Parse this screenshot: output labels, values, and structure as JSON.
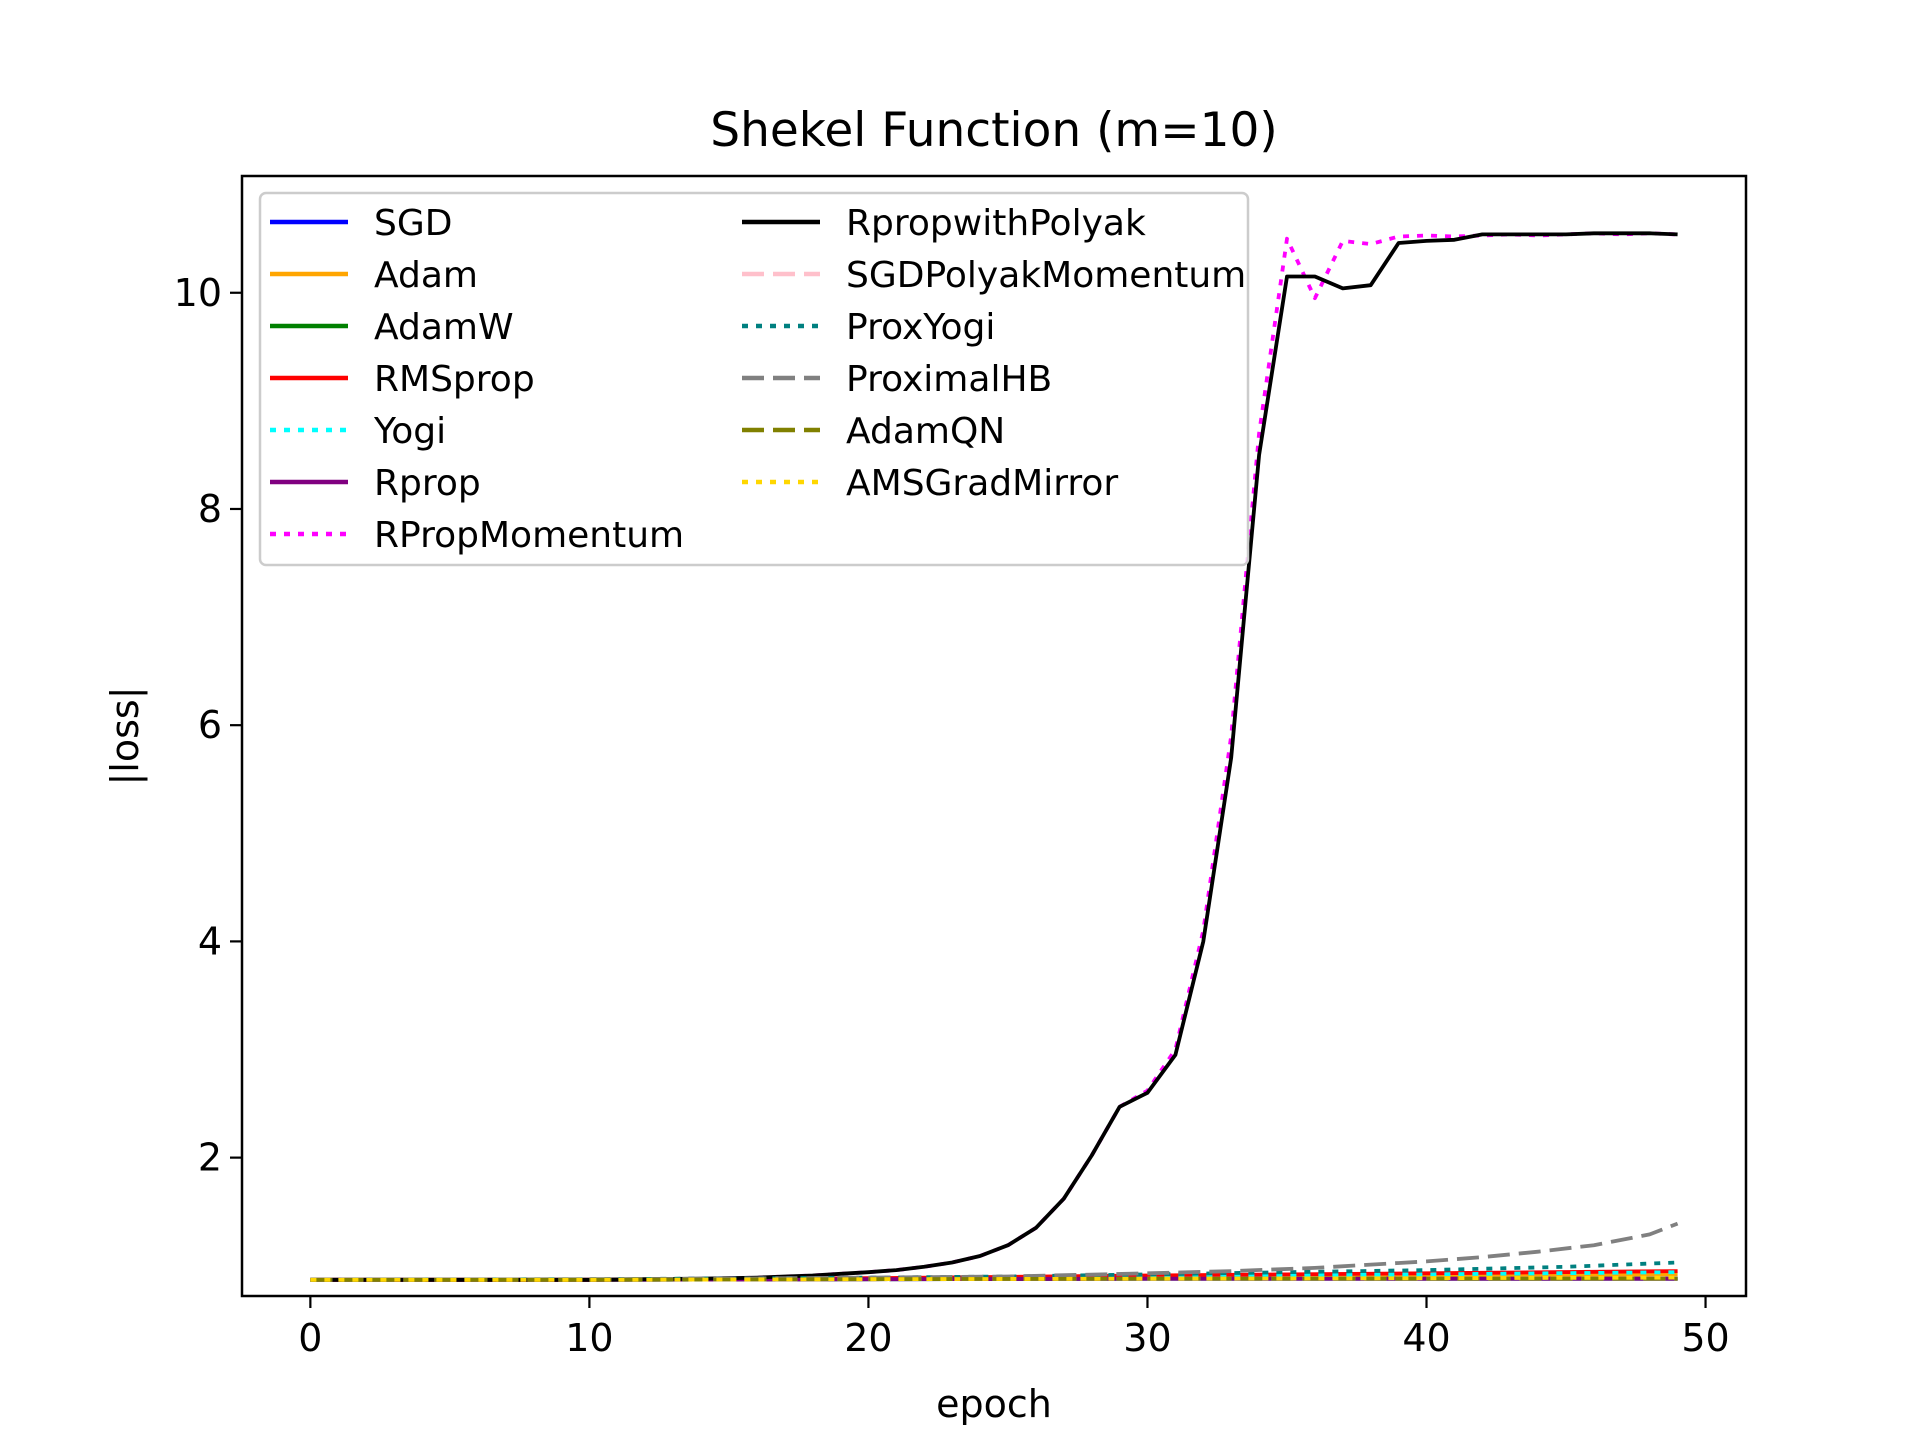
{
  "chart_data": {
    "type": "line",
    "title": "Shekel Function (m=10)",
    "xlabel": "epoch",
    "ylabel": "|loss|",
    "xlim": [
      -2.45,
      51.45
    ],
    "ylim": [
      0.72,
      11.08
    ],
    "xticks": [
      0,
      10,
      20,
      30,
      40,
      50
    ],
    "yticks": [
      2,
      4,
      6,
      8,
      10
    ],
    "legend_position": "top-left",
    "grid": false,
    "series": [
      {
        "name": "SGD",
        "color": "#0000ff",
        "dash": "solid",
        "points": [
          [
            0,
            0.87
          ],
          [
            10,
            0.87
          ],
          [
            20,
            0.875
          ],
          [
            30,
            0.88
          ],
          [
            40,
            0.88
          ],
          [
            49,
            0.88
          ]
        ]
      },
      {
        "name": "Adam",
        "color": "#ffa500",
        "dash": "solid",
        "points": [
          [
            0,
            0.87
          ],
          [
            10,
            0.87
          ],
          [
            20,
            0.88
          ],
          [
            30,
            0.895
          ],
          [
            40,
            0.91
          ],
          [
            49,
            0.92
          ]
        ]
      },
      {
        "name": "AdamW",
        "color": "#008000",
        "dash": "solid",
        "points": [
          [
            0,
            0.87
          ],
          [
            10,
            0.87
          ],
          [
            20,
            0.875
          ],
          [
            30,
            0.88
          ],
          [
            40,
            0.88
          ],
          [
            49,
            0.88
          ]
        ]
      },
      {
        "name": "RMSprop",
        "color": "#ff0000",
        "dash": "solid",
        "points": [
          [
            0,
            0.87
          ],
          [
            10,
            0.87
          ],
          [
            20,
            0.885
          ],
          [
            30,
            0.91
          ],
          [
            40,
            0.93
          ],
          [
            49,
            0.95
          ]
        ]
      },
      {
        "name": "Yogi",
        "color": "#00ffff",
        "dash": "dotted",
        "points": [
          [
            0,
            0.87
          ],
          [
            10,
            0.87
          ],
          [
            20,
            0.88
          ],
          [
            30,
            0.9
          ],
          [
            40,
            0.92
          ],
          [
            49,
            0.94
          ]
        ]
      },
      {
        "name": "Rprop",
        "color": "#800080",
        "dash": "solid",
        "points": [
          [
            0,
            0.87
          ],
          [
            10,
            0.87
          ],
          [
            20,
            0.875
          ],
          [
            30,
            0.88
          ],
          [
            40,
            0.88
          ],
          [
            49,
            0.88
          ]
        ]
      },
      {
        "name": "RPropMomentum",
        "color": "#ff00ff",
        "dash": "dotted",
        "points": [
          [
            0,
            0.87
          ],
          [
            5,
            0.87
          ],
          [
            10,
            0.87
          ],
          [
            12,
            0.875
          ],
          [
            14,
            0.88
          ],
          [
            15,
            0.885
          ],
          [
            16,
            0.89
          ],
          [
            17,
            0.9
          ],
          [
            18,
            0.91
          ],
          [
            19,
            0.925
          ],
          [
            20,
            0.94
          ],
          [
            21,
            0.96
          ],
          [
            22,
            0.99
          ],
          [
            23,
            1.03
          ],
          [
            24,
            1.09
          ],
          [
            25,
            1.19
          ],
          [
            26,
            1.35
          ],
          [
            27,
            1.62
          ],
          [
            28,
            2.02
          ],
          [
            29,
            2.47
          ],
          [
            30,
            2.62
          ],
          [
            31,
            3.0
          ],
          [
            32,
            4.1
          ],
          [
            33,
            5.9
          ],
          [
            33.5,
            7.3
          ],
          [
            34,
            8.7
          ],
          [
            35,
            10.5
          ],
          [
            36,
            9.95
          ],
          [
            37,
            10.48
          ],
          [
            38,
            10.45
          ],
          [
            39,
            10.52
          ],
          [
            40,
            10.53
          ],
          [
            41,
            10.52
          ],
          [
            42,
            10.53
          ],
          [
            43,
            10.54
          ],
          [
            44,
            10.53
          ],
          [
            45,
            10.54
          ],
          [
            46,
            10.55
          ],
          [
            47,
            10.54
          ],
          [
            48,
            10.55
          ],
          [
            49,
            10.54
          ]
        ]
      },
      {
        "name": "RpropwithPolyak",
        "color": "#000000",
        "dash": "solid",
        "points": [
          [
            0,
            0.87
          ],
          [
            5,
            0.87
          ],
          [
            10,
            0.87
          ],
          [
            12,
            0.875
          ],
          [
            14,
            0.88
          ],
          [
            15,
            0.885
          ],
          [
            16,
            0.89
          ],
          [
            17,
            0.9
          ],
          [
            18,
            0.91
          ],
          [
            19,
            0.925
          ],
          [
            20,
            0.94
          ],
          [
            21,
            0.96
          ],
          [
            22,
            0.99
          ],
          [
            23,
            1.03
          ],
          [
            24,
            1.09
          ],
          [
            25,
            1.19
          ],
          [
            26,
            1.35
          ],
          [
            27,
            1.62
          ],
          [
            28,
            2.02
          ],
          [
            29,
            2.47
          ],
          [
            30,
            2.6
          ],
          [
            31,
            2.95
          ],
          [
            32,
            4.0
          ],
          [
            33,
            5.7
          ],
          [
            33.5,
            7.1
          ],
          [
            34,
            8.5
          ],
          [
            35,
            10.15
          ],
          [
            36,
            10.15
          ],
          [
            37,
            10.04
          ],
          [
            38,
            10.07
          ],
          [
            39,
            10.46
          ],
          [
            40,
            10.48
          ],
          [
            41,
            10.49
          ],
          [
            42,
            10.54
          ],
          [
            43,
            10.54
          ],
          [
            44,
            10.54
          ],
          [
            45,
            10.54
          ],
          [
            46,
            10.55
          ],
          [
            47,
            10.55
          ],
          [
            48,
            10.55
          ],
          [
            49,
            10.54
          ]
        ]
      },
      {
        "name": "SGDPolyakMomentum",
        "color": "#ffc0cb",
        "dash": "dashed",
        "points": [
          [
            0,
            0.87
          ],
          [
            10,
            0.87
          ],
          [
            20,
            0.875
          ],
          [
            30,
            0.88
          ],
          [
            40,
            0.88
          ],
          [
            49,
            0.88
          ]
        ]
      },
      {
        "name": "ProxYogi",
        "color": "#008080",
        "dash": "dotted",
        "points": [
          [
            0,
            0.87
          ],
          [
            10,
            0.875
          ],
          [
            20,
            0.89
          ],
          [
            25,
            0.9
          ],
          [
            30,
            0.92
          ],
          [
            35,
            0.94
          ],
          [
            40,
            0.96
          ],
          [
            45,
            0.99
          ],
          [
            49,
            1.03
          ]
        ]
      },
      {
        "name": "ProximalHB",
        "color": "#808080",
        "dash": "dashed",
        "points": [
          [
            0,
            0.87
          ],
          [
            5,
            0.872
          ],
          [
            10,
            0.875
          ],
          [
            15,
            0.88
          ],
          [
            20,
            0.89
          ],
          [
            25,
            0.9
          ],
          [
            30,
            0.93
          ],
          [
            33,
            0.95
          ],
          [
            36,
            0.98
          ],
          [
            38,
            1.01
          ],
          [
            40,
            1.04
          ],
          [
            42,
            1.08
          ],
          [
            44,
            1.13
          ],
          [
            46,
            1.19
          ],
          [
            48,
            1.29
          ],
          [
            49,
            1.39
          ]
        ]
      },
      {
        "name": "AdamQN",
        "color": "#808000",
        "dash": "dashed",
        "points": [
          [
            0,
            0.87
          ],
          [
            10,
            0.87
          ],
          [
            20,
            0.875
          ],
          [
            30,
            0.88
          ],
          [
            40,
            0.88
          ],
          [
            49,
            0.88
          ]
        ]
      },
      {
        "name": "AMSGradMirror",
        "color": "#ffd700",
        "dash": "dotted",
        "points": [
          [
            0,
            0.87
          ],
          [
            10,
            0.87
          ],
          [
            20,
            0.875
          ],
          [
            30,
            0.88
          ],
          [
            40,
            0.885
          ],
          [
            49,
            0.89
          ]
        ]
      }
    ]
  }
}
